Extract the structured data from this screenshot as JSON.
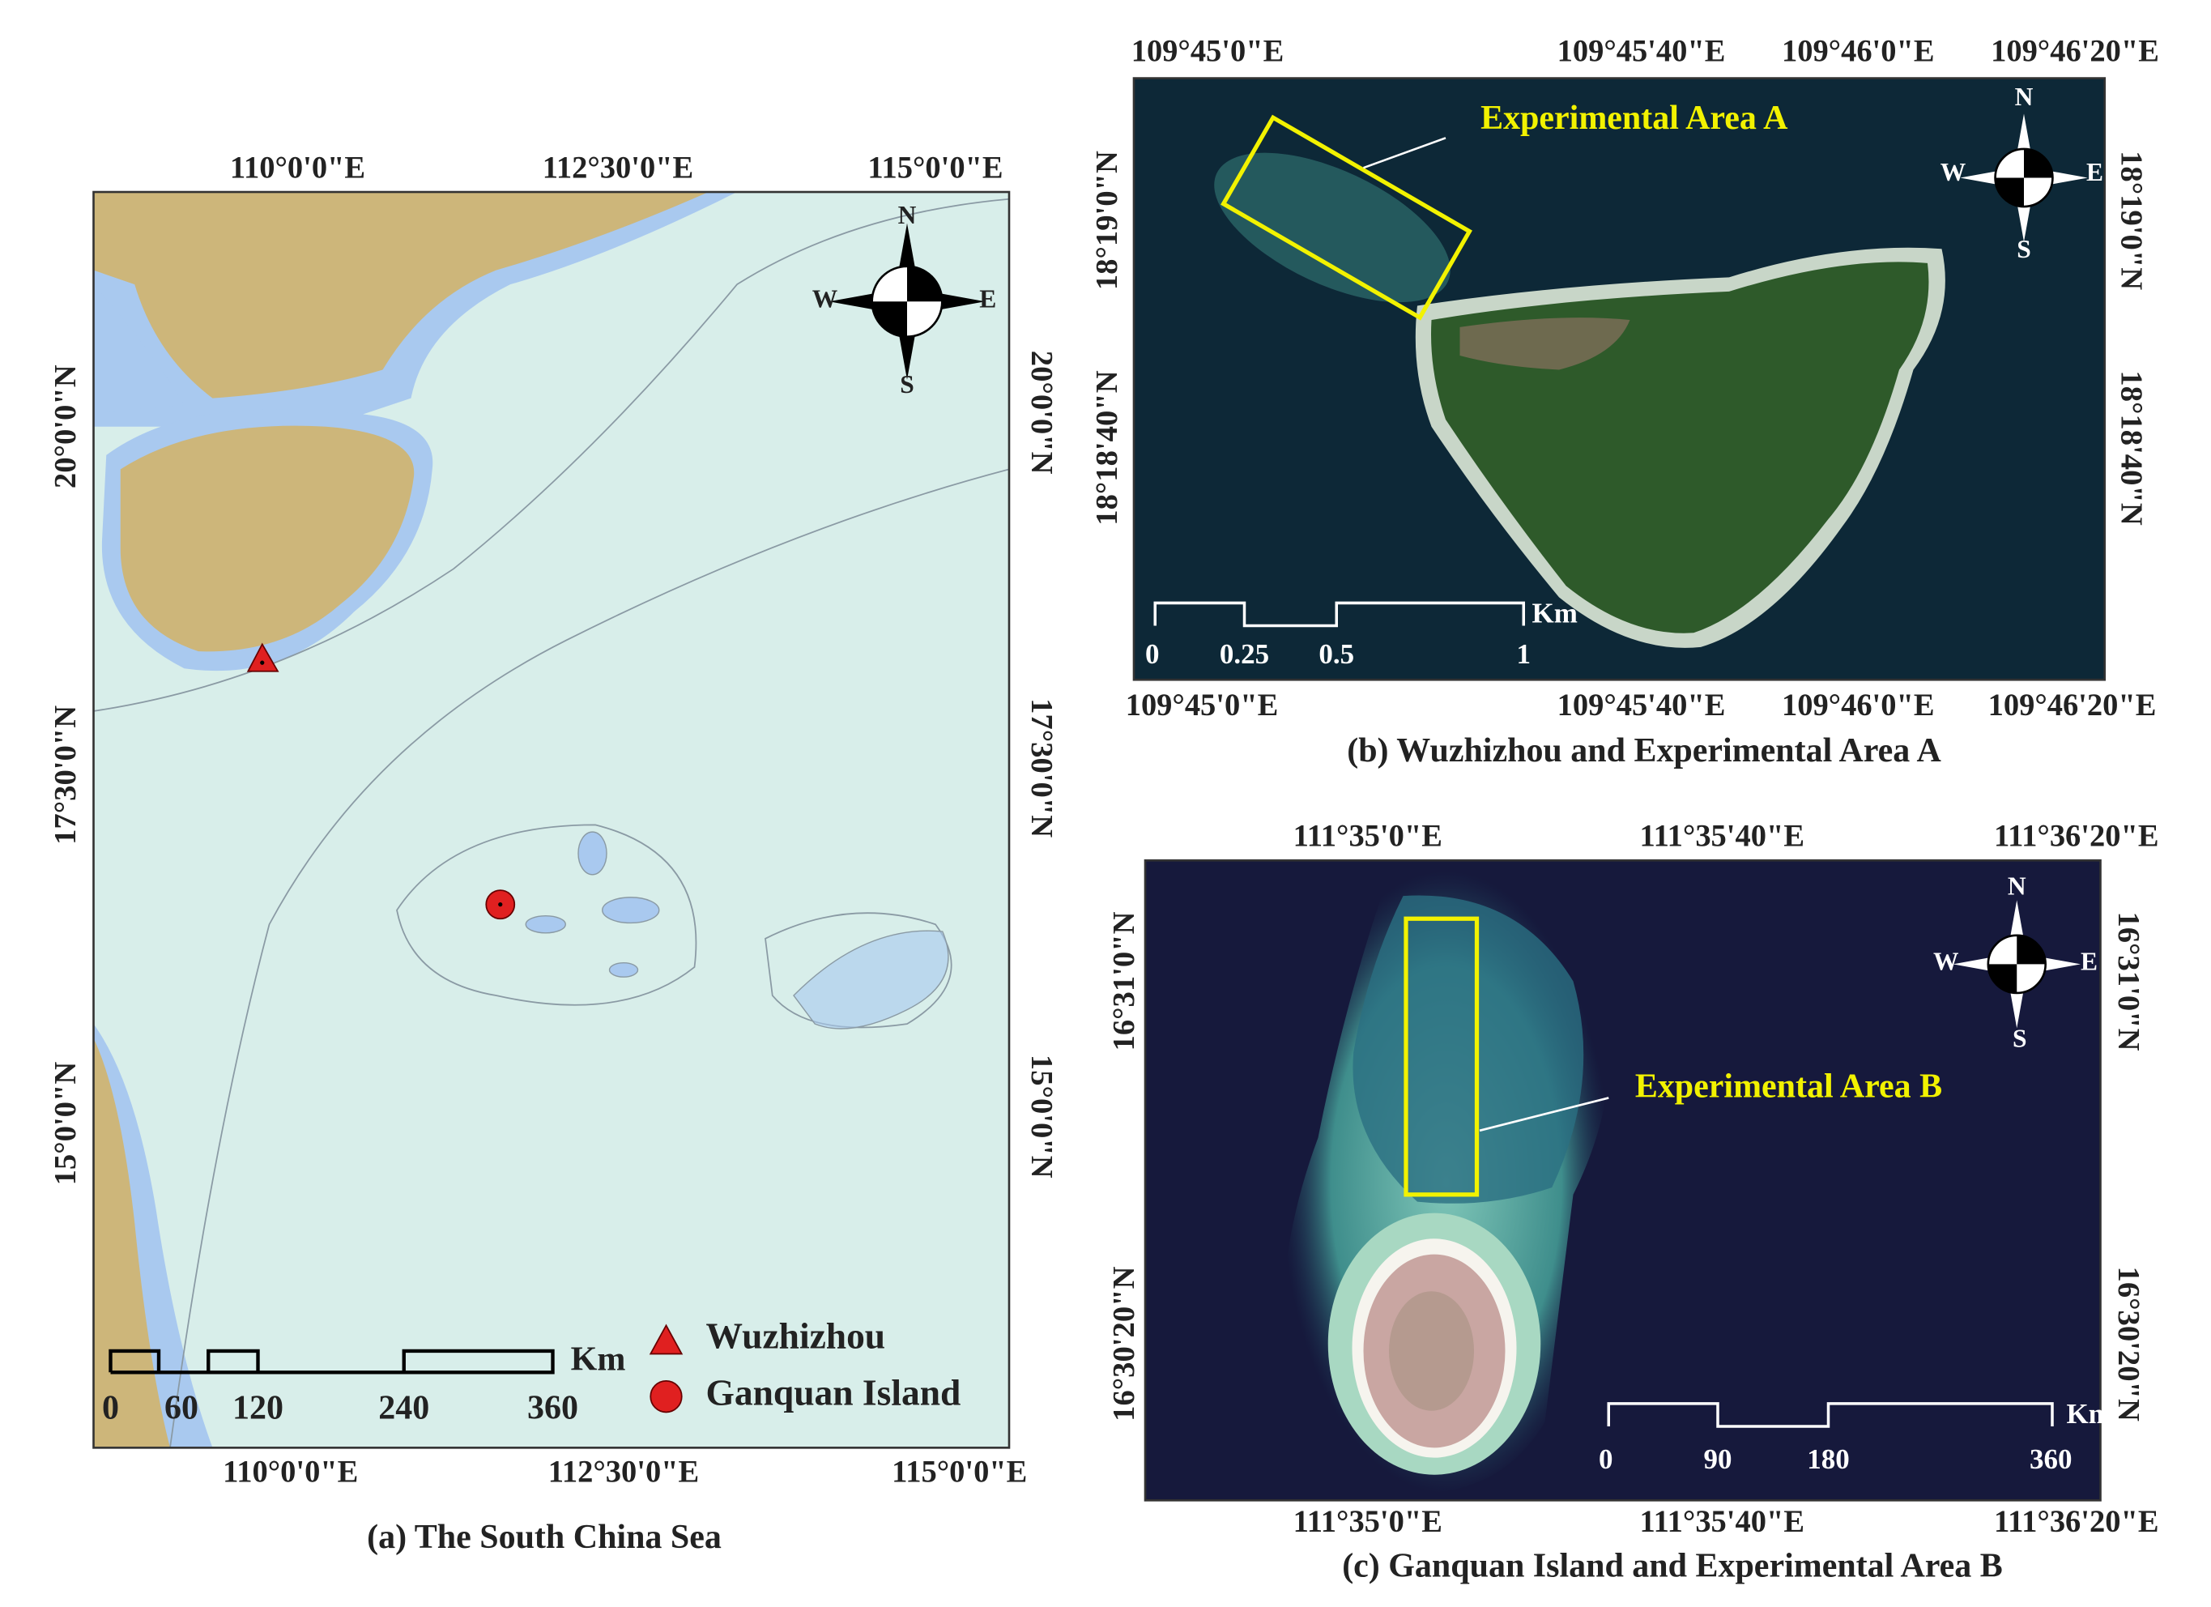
{
  "panel_a": {
    "caption": "(a) The South China Sea",
    "top_labels": [
      "110°0'0\"E",
      "112°30'0\"E",
      "115°0'0\"E"
    ],
    "bottom_labels": [
      "110°0'0\"E",
      "112°30'0\"E",
      "115°0'0\"E"
    ],
    "left_labels": [
      "20°0'0\"N",
      "17°30'0\"N",
      "15°0'0\"N"
    ],
    "right_labels": [
      "20°0'0\"N",
      "17°30'0\"N",
      "15°0'0\"N"
    ],
    "compass": {
      "n": "N",
      "s": "S",
      "w": "W",
      "e": "E"
    },
    "scale": {
      "unit": "Km",
      "ticks": [
        "0",
        "60",
        "120",
        "240",
        "360"
      ]
    },
    "legend": [
      {
        "label": "Wuzhizhou"
      },
      {
        "label": "Ganquan Island"
      }
    ]
  },
  "panel_b": {
    "caption": "(b) Wuzhizhou and Experimental Area A",
    "top_labels": [
      "109°45'0\"E",
      "109°45'40\"E",
      "109°46'0\"E",
      "109°46'20\"E"
    ],
    "bottom_labels": [
      "109°45'0\"E",
      "109°45'40\"E",
      "109°46'0\"E",
      "109°46'20\"E"
    ],
    "left_labels": [
      "18°19'0\"N",
      "18°18'40\"N"
    ],
    "right_labels": [
      "18°19'0\"N",
      "18°18'40\"N"
    ],
    "annotation": "Experimental Area A",
    "compass": {
      "n": "N",
      "s": "S",
      "w": "W",
      "e": "E"
    },
    "scale": {
      "unit": "Km",
      "ticks": [
        "0",
        "0.25",
        "0.5",
        "1"
      ]
    }
  },
  "panel_c": {
    "caption": "(c) Ganquan Island and Experimental Area B",
    "top_labels": [
      "111°35'0\"E",
      "111°35'40\"E",
      "111°36'20\"E"
    ],
    "bottom_labels": [
      "111°35'0\"E",
      "111°35'40\"E",
      "111°36'20\"E"
    ],
    "left_labels": [
      "16°31'0\"N",
      "16°30'20\"N"
    ],
    "right_labels": [
      "16°31'0\"N",
      "16°30'20\"N"
    ],
    "annotation": "Experimental Area B",
    "compass": {
      "n": "N",
      "s": "S",
      "w": "W",
      "e": "E"
    },
    "scale": {
      "unit": "Km",
      "ticks": [
        "0",
        "90",
        "180",
        "360"
      ]
    }
  }
}
